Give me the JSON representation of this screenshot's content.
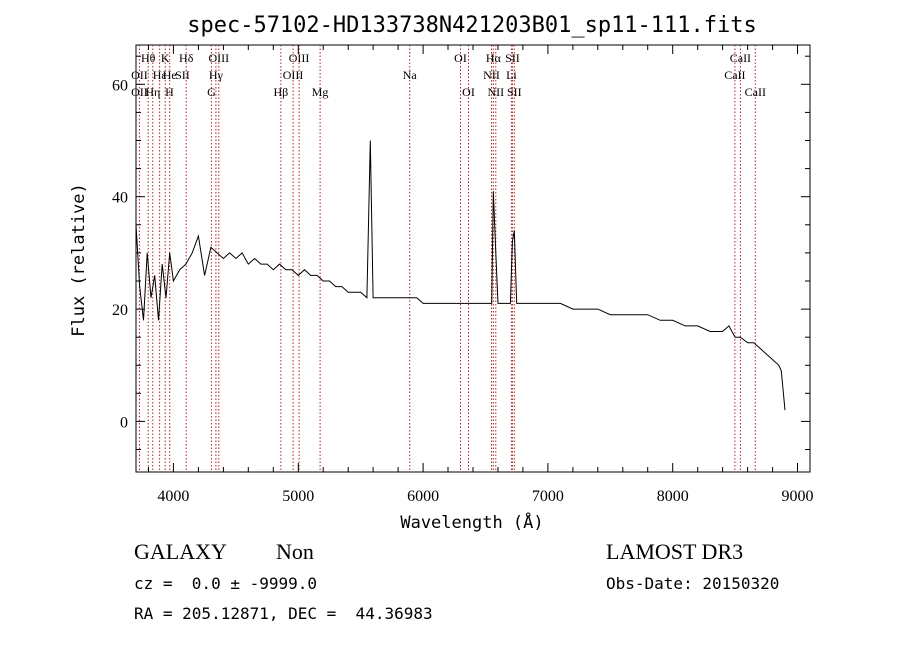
{
  "chart_data": {
    "type": "line",
    "title": "spec-57102-HD133738N421203B01_sp11-111.fits",
    "xlabel": "Wavelength (Å)",
    "ylabel": "Flux (relative)",
    "xlim": [
      3700,
      9100
    ],
    "ylim": [
      -9,
      67
    ],
    "xticks": [
      4000,
      5000,
      6000,
      7000,
      8000,
      9000
    ],
    "yticks": [
      0,
      20,
      40,
      60
    ],
    "xtick_labels": [
      "4000",
      "5000",
      "6000",
      "7000",
      "8000",
      "9000"
    ],
    "ytick_labels": [
      "0",
      "20",
      "40",
      "60"
    ],
    "lines": [
      {
        "label": "OII",
        "wavelength": 3727,
        "row": 2
      },
      {
        "label": "OII",
        "wavelength": 3727,
        "row": 3
      },
      {
        "label": "Hθ",
        "wavelength": 3798,
        "row": 1
      },
      {
        "label": "Hε",
        "wavelength": 3889,
        "row": 2
      },
      {
        "label": "Hη",
        "wavelength": 3835,
        "row": 3
      },
      {
        "label": "K",
        "wavelength": 3934,
        "row": 1
      },
      {
        "label": "He",
        "wavelength": 3970,
        "row": 2
      },
      {
        "label": "H",
        "wavelength": 3968,
        "row": 3
      },
      {
        "label": "Hδ",
        "wavelength": 4102,
        "row": 1
      },
      {
        "label": "SII",
        "wavelength": 4072,
        "row": 2
      },
      {
        "label": "OIII",
        "wavelength": 4363,
        "row": 1
      },
      {
        "label": "Hγ",
        "wavelength": 4340,
        "row": 2
      },
      {
        "label": "G",
        "wavelength": 4304,
        "row": 3
      },
      {
        "label": "OIII",
        "wavelength": 5007,
        "row": 1
      },
      {
        "label": "OIII",
        "wavelength": 4959,
        "row": 2
      },
      {
        "label": "Hβ",
        "wavelength": 4861,
        "row": 3
      },
      {
        "label": "Mg",
        "wavelength": 5175,
        "row": 3
      },
      {
        "label": "Na",
        "wavelength": 5893,
        "row": 2
      },
      {
        "label": "OI",
        "wavelength": 6300,
        "row": 1
      },
      {
        "label": "OI",
        "wavelength": 6364,
        "row": 3
      },
      {
        "label": "Hα",
        "wavelength": 6563,
        "row": 1
      },
      {
        "label": "NII",
        "wavelength": 6548,
        "row": 2
      },
      {
        "label": "NII",
        "wavelength": 6583,
        "row": 3
      },
      {
        "label": "SII",
        "wavelength": 6716,
        "row": 1
      },
      {
        "label": "Li",
        "wavelength": 6708,
        "row": 2
      },
      {
        "label": "SII",
        "wavelength": 6731,
        "row": 3
      },
      {
        "label": "CaII",
        "wavelength": 8542,
        "row": 1
      },
      {
        "label": "CaII",
        "wavelength": 8498,
        "row": 2
      },
      {
        "label": "CaII",
        "wavelength": 8662,
        "row": 3
      }
    ],
    "marker_wavelengths": [
      3727,
      3798,
      3835,
      3889,
      3934,
      3970,
      4102,
      4304,
      4340,
      4363,
      4861,
      4959,
      5007,
      5175,
      5893,
      6300,
      6364,
      6548,
      6563,
      6583,
      6708,
      6716,
      6731,
      8498,
      8542,
      8662
    ],
    "series": [
      {
        "name": "spectrum",
        "x": [
          3700,
          3730,
          3760,
          3790,
          3820,
          3850,
          3880,
          3910,
          3940,
          3970,
          4000,
          4050,
          4100,
          4150,
          4200,
          4250,
          4300,
          4350,
          4400,
          4450,
          4500,
          4550,
          4600,
          4650,
          4700,
          4750,
          4800,
          4850,
          4900,
          4950,
          5000,
          5050,
          5100,
          5150,
          5200,
          5250,
          5300,
          5350,
          5400,
          5450,
          5500,
          5550,
          5577,
          5600,
          5650,
          5700,
          5750,
          5800,
          5850,
          5900,
          5950,
          6000,
          6100,
          6200,
          6300,
          6400,
          6500,
          6550,
          6563,
          6583,
          6600,
          6650,
          6700,
          6716,
          6731,
          6750,
          6800,
          6900,
          7000,
          7100,
          7200,
          7300,
          7400,
          7500,
          7600,
          7700,
          7800,
          7900,
          8000,
          8100,
          8200,
          8300,
          8400,
          8450,
          8500,
          8542,
          8600,
          8650,
          8700,
          8750,
          8800,
          8850,
          8870,
          8900
        ],
        "y": [
          35,
          24,
          18,
          30,
          22,
          26,
          18,
          28,
          22,
          30,
          25,
          27,
          28,
          30,
          33,
          26,
          31,
          30,
          29,
          30,
          29,
          30,
          28,
          29,
          28,
          28,
          27,
          28,
          27,
          27,
          26,
          27,
          26,
          26,
          25,
          25,
          24,
          24,
          23,
          23,
          23,
          22,
          50,
          22,
          22,
          22,
          22,
          22,
          22,
          22,
          22,
          21,
          21,
          21,
          21,
          21,
          21,
          21,
          41,
          30,
          21,
          21,
          21,
          32,
          34,
          21,
          21,
          21,
          21,
          21,
          20,
          20,
          20,
          19,
          19,
          19,
          19,
          18,
          18,
          17,
          17,
          16,
          16,
          17,
          15,
          15,
          14,
          14,
          13,
          12,
          11,
          10,
          9,
          2
        ]
      }
    ]
  },
  "footer": {
    "class_label": "GALAXY",
    "subclass_label": "Non",
    "survey": "LAMOST DR3",
    "redshift_text": "cz =  0.0 ± -9999.0",
    "obs_date_text": "Obs-Date: 20150320",
    "coords_text": "RA = 205.12871, DEC =  44.36983"
  },
  "colors": {
    "spectrum": "#000000",
    "marker": "#b22222",
    "axis": "#000000",
    "background": "#ffffff"
  }
}
